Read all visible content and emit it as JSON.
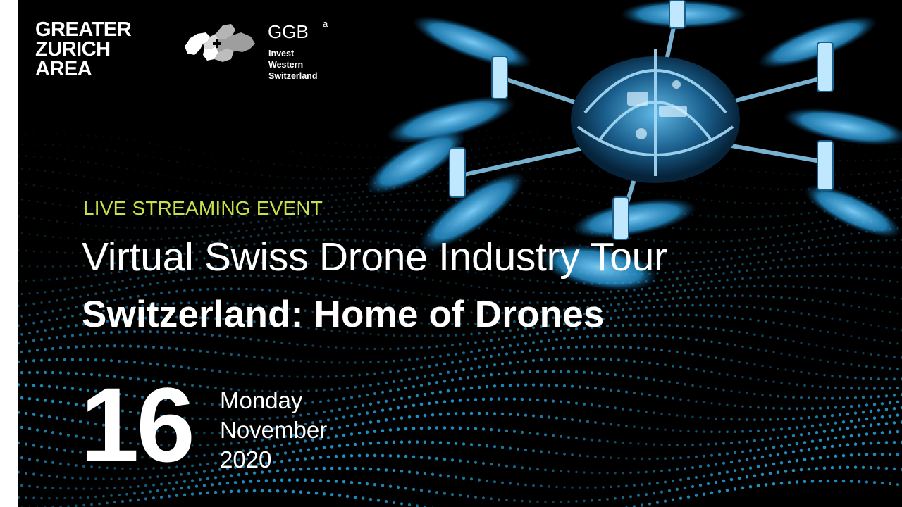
{
  "logos": {
    "greater_zurich": [
      "GREATER",
      "ZURICH",
      "AREA"
    ],
    "ggba": {
      "name": "GGB",
      "superscript": "a",
      "subtitle": [
        "Invest",
        "Western",
        "Switzerland"
      ]
    }
  },
  "event": {
    "kicker": "LIVE STREAMING EVENT",
    "title": "Virtual Swiss Drone Industry Tour",
    "subtitle": "Switzerland: Home of Drones"
  },
  "date": {
    "day": "16",
    "weekday": "Monday",
    "month": "November",
    "year": "2020"
  },
  "colors": {
    "background": "#000000",
    "accent_green": "#c8e04a",
    "dots_blue": "#1f8fc4",
    "drone_blue": "#4ab8ee"
  },
  "icons": [
    "swiss-map-logo",
    "drone-illustration"
  ]
}
